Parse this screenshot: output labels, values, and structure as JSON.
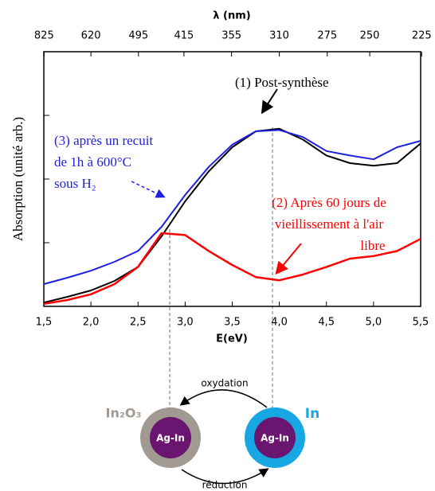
{
  "chart_data": {
    "type": "line",
    "xlabel": "E(eV)",
    "x2label": "λ (nm)",
    "ylabel": "Absorption (unité arb.)",
    "x": [
      1.5,
      1.75,
      2,
      2.25,
      2.5,
      2.75,
      3,
      3.25,
      3.5,
      3.75,
      4,
      4.25,
      4.5,
      4.75,
      5,
      5.25,
      5.5
    ],
    "series": [
      {
        "name": "(1) Post-synthèse",
        "color": "#000000",
        "values": [
          0.06,
          0.15,
          0.25,
          0.4,
          0.62,
          1.1,
          1.65,
          2.12,
          2.5,
          2.75,
          2.79,
          2.62,
          2.37,
          2.25,
          2.21,
          2.25,
          2.56
        ]
      },
      {
        "name": "(3) après un recuit",
        "color": "#1f1fe0",
        "values": [
          0.35,
          0.45,
          0.56,
          0.7,
          0.87,
          1.25,
          1.75,
          2.19,
          2.54,
          2.75,
          2.77,
          2.66,
          2.44,
          2.37,
          2.31,
          2.5,
          2.6
        ]
      },
      {
        "name": "(2) Après 60 jours de",
        "color": "#ff0000",
        "values": [
          0.04,
          0.1,
          0.19,
          0.35,
          0.62,
          1.15,
          1.12,
          0.87,
          0.65,
          0.46,
          0.41,
          0.5,
          0.62,
          0.75,
          0.79,
          0.87,
          1.06
        ]
      }
    ],
    "annotations": [
      "de 1h à 600°C",
      "sous H₂",
      "vieillissement à l'air",
      "libre"
    ],
    "xlim": [
      1.5,
      5.5
    ],
    "xticks": [
      {
        "value": 1.5,
        "label": "1,5"
      },
      {
        "value": 2,
        "label": "2,0"
      },
      {
        "value": 2.5,
        "label": "2,5"
      },
      {
        "value": 3,
        "label": "3,0"
      },
      {
        "value": 3.5,
        "label": "3,5"
      },
      {
        "value": 4,
        "label": "4,0"
      },
      {
        "value": 4.5,
        "label": "4,5"
      },
      {
        "value": 5,
        "label": "5,0"
      },
      {
        "value": 5.5,
        "label": "5,5"
      }
    ],
    "x2ticks": [
      825,
      620,
      495,
      415,
      355,
      310,
      275,
      250,
      225
    ],
    "ylim": [
      0,
      4
    ],
    "yticks": [
      0,
      1,
      2,
      3,
      4
    ]
  },
  "diagram": {
    "left_shell": "In₂O₃",
    "right_shell": "In",
    "left_core": "Ag-In",
    "right_core": "Ag-In",
    "top_arrow": "oxydation",
    "bottom_arrow": "réduction"
  }
}
